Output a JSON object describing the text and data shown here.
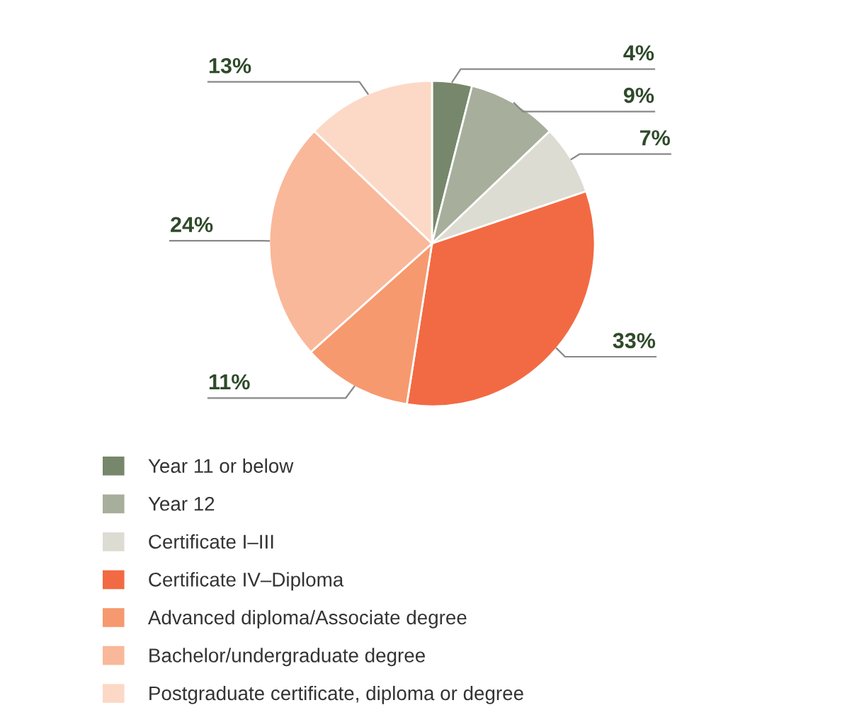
{
  "chart_data": {
    "type": "pie",
    "categories": [
      "Year 11 or below",
      "Year 12",
      "Certificate I–III",
      "Certificate IV–Diploma",
      "Advanced diploma/Associate degree",
      "Bachelor/undergraduate degree",
      "Postgraduate certificate, diploma or degree"
    ],
    "values": [
      4,
      9,
      7,
      33,
      11,
      24,
      13
    ],
    "colors": [
      "#77876b",
      "#a7ae9b",
      "#dcdcd3",
      "#f26a43",
      "#f6996f",
      "#f9b89a",
      "#fcd9c6"
    ],
    "value_labels": [
      "4%",
      "9%",
      "7%",
      "33%",
      "11%",
      "24%",
      "13%"
    ],
    "legend": "bottom"
  }
}
